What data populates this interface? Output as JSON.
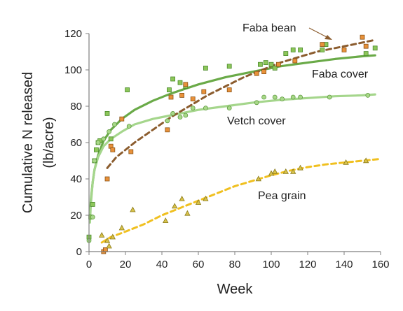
{
  "chart_data": {
    "type": "scatter",
    "xlabel": "Week",
    "ylabel_line1": "Cumulative N released",
    "ylabel_line2": "(lb/acre)",
    "xlim": [
      0,
      160
    ],
    "ylim": [
      0,
      120
    ],
    "x_ticks": [
      0,
      20,
      40,
      60,
      80,
      100,
      120,
      140,
      160
    ],
    "y_ticks": [
      0,
      20,
      40,
      60,
      80,
      100,
      120
    ],
    "grid": false,
    "annotations": {
      "faba_bean": "Faba bean",
      "faba_cover": "Faba cover",
      "vetch_cover": "Vetch cover",
      "pea_grain": "Pea grain"
    },
    "series": [
      {
        "key": "faba_cover",
        "marker": "square",
        "fill": "#8dc65a",
        "stroke": "#4a8a2a",
        "points": [
          [
            0,
            8
          ],
          [
            1,
            19
          ],
          [
            2,
            26
          ],
          [
            3,
            50
          ],
          [
            4,
            56
          ],
          [
            5,
            60
          ],
          [
            6,
            61
          ],
          [
            10,
            76
          ],
          [
            12,
            62
          ],
          [
            21,
            89
          ],
          [
            44,
            89
          ],
          [
            46,
            95
          ],
          [
            50,
            93
          ],
          [
            53,
            91
          ],
          [
            64,
            101
          ],
          [
            77,
            102
          ],
          [
            94,
            103
          ],
          [
            97,
            104
          ],
          [
            100,
            103
          ],
          [
            102,
            101
          ],
          [
            108,
            109
          ],
          [
            112,
            111
          ],
          [
            116,
            111
          ],
          [
            128,
            111
          ],
          [
            130,
            114
          ],
          [
            152,
            109
          ],
          [
            157,
            112
          ]
        ]
      },
      {
        "key": "vetch_cover",
        "marker": "circle",
        "fill": "#a8d888",
        "stroke": "#5f9a40",
        "points": [
          [
            0,
            6
          ],
          [
            2,
            19
          ],
          [
            3,
            50
          ],
          [
            5,
            60
          ],
          [
            8,
            62
          ],
          [
            11,
            66
          ],
          [
            14,
            70
          ],
          [
            22,
            69
          ],
          [
            43,
            72
          ],
          [
            46,
            76
          ],
          [
            50,
            74
          ],
          [
            53,
            75
          ],
          [
            57,
            79
          ],
          [
            64,
            79
          ],
          [
            77,
            79
          ],
          [
            92,
            82
          ],
          [
            96,
            85
          ],
          [
            102,
            85
          ],
          [
            106,
            84
          ],
          [
            112,
            85
          ],
          [
            116,
            85
          ],
          [
            132,
            85
          ],
          [
            153,
            86
          ]
        ]
      },
      {
        "key": "faba_bean",
        "marker": "square",
        "fill": "#e8913a",
        "stroke": "#8a5418",
        "points": [
          [
            8,
            0
          ],
          [
            9,
            1
          ],
          [
            10,
            40
          ],
          [
            12,
            58
          ],
          [
            13,
            56
          ],
          [
            18,
            73
          ],
          [
            23,
            55
          ],
          [
            43,
            67
          ],
          [
            45,
            85
          ],
          [
            51,
            86
          ],
          [
            53,
            92
          ],
          [
            57,
            84
          ],
          [
            63,
            88
          ],
          [
            77,
            89
          ],
          [
            92,
            98
          ],
          [
            96,
            99
          ],
          [
            104,
            103
          ],
          [
            113,
            105
          ],
          [
            128,
            114
          ],
          [
            140,
            111
          ],
          [
            150,
            118
          ],
          [
            152,
            113
          ]
        ]
      },
      {
        "key": "pea_grain",
        "marker": "triangle",
        "fill": "#d8c24a",
        "stroke": "#8a7a18",
        "points": [
          [
            7,
            9
          ],
          [
            10,
            6
          ],
          [
            11,
            3
          ],
          [
            13,
            8
          ],
          [
            18,
            13
          ],
          [
            24,
            23
          ],
          [
            42,
            17
          ],
          [
            47,
            25
          ],
          [
            51,
            29
          ],
          [
            54,
            21
          ],
          [
            60,
            27
          ],
          [
            64,
            29
          ],
          [
            93,
            40
          ],
          [
            100,
            43
          ],
          [
            102,
            44
          ],
          [
            108,
            44
          ],
          [
            112,
            44
          ],
          [
            116,
            46
          ],
          [
            141,
            49
          ],
          [
            152,
            50
          ]
        ]
      }
    ],
    "fits": [
      {
        "key": "faba_cover",
        "style": "solid",
        "color": "#6aaa48",
        "points": [
          [
            0.5,
            20
          ],
          [
            1,
            28
          ],
          [
            2,
            38
          ],
          [
            3,
            45
          ],
          [
            5,
            53
          ],
          [
            8,
            61
          ],
          [
            12,
            67
          ],
          [
            18,
            73
          ],
          [
            25,
            78
          ],
          [
            35,
            83
          ],
          [
            45,
            87
          ],
          [
            60,
            92
          ],
          [
            75,
            96
          ],
          [
            90,
            99
          ],
          [
            105,
            102
          ],
          [
            120,
            104
          ],
          [
            135,
            106
          ],
          [
            150,
            107.5
          ],
          [
            157,
            108
          ]
        ]
      },
      {
        "key": "vetch_cover",
        "style": "solid",
        "color": "#a5d68c",
        "points": [
          [
            0.5,
            16
          ],
          [
            1,
            26
          ],
          [
            2,
            38
          ],
          [
            3,
            45
          ],
          [
            5,
            52
          ],
          [
            8,
            58
          ],
          [
            12,
            62
          ],
          [
            18,
            66
          ],
          [
            25,
            70
          ],
          [
            35,
            73
          ],
          [
            45,
            75
          ],
          [
            60,
            78
          ],
          [
            75,
            80
          ],
          [
            90,
            82
          ],
          [
            105,
            83.5
          ],
          [
            120,
            84.5
          ],
          [
            135,
            85.5
          ],
          [
            150,
            86
          ],
          [
            157,
            86.5
          ]
        ]
      },
      {
        "key": "faba_bean",
        "style": "dashed",
        "color": "#8b5c2e",
        "points": [
          [
            10,
            46
          ],
          [
            15,
            52
          ],
          [
            25,
            60
          ],
          [
            35,
            67
          ],
          [
            45,
            74
          ],
          [
            55,
            80
          ],
          [
            65,
            86
          ],
          [
            75,
            91
          ],
          [
            85,
            96
          ],
          [
            95,
            100
          ],
          [
            105,
            104
          ],
          [
            115,
            107
          ],
          [
            125,
            110
          ],
          [
            135,
            112
          ],
          [
            145,
            114
          ],
          [
            157,
            116.5
          ]
        ]
      },
      {
        "key": "pea_grain",
        "style": "dashed",
        "color": "#f0c020",
        "points": [
          [
            7,
            5
          ],
          [
            12,
            8
          ],
          [
            20,
            11
          ],
          [
            30,
            15
          ],
          [
            40,
            20
          ],
          [
            50,
            24
          ],
          [
            60,
            28
          ],
          [
            70,
            32
          ],
          [
            80,
            36
          ],
          [
            90,
            39
          ],
          [
            100,
            42
          ],
          [
            110,
            44.5
          ],
          [
            120,
            46.5
          ],
          [
            130,
            48
          ],
          [
            140,
            49
          ],
          [
            150,
            50
          ],
          [
            160,
            51
          ]
        ]
      }
    ]
  }
}
